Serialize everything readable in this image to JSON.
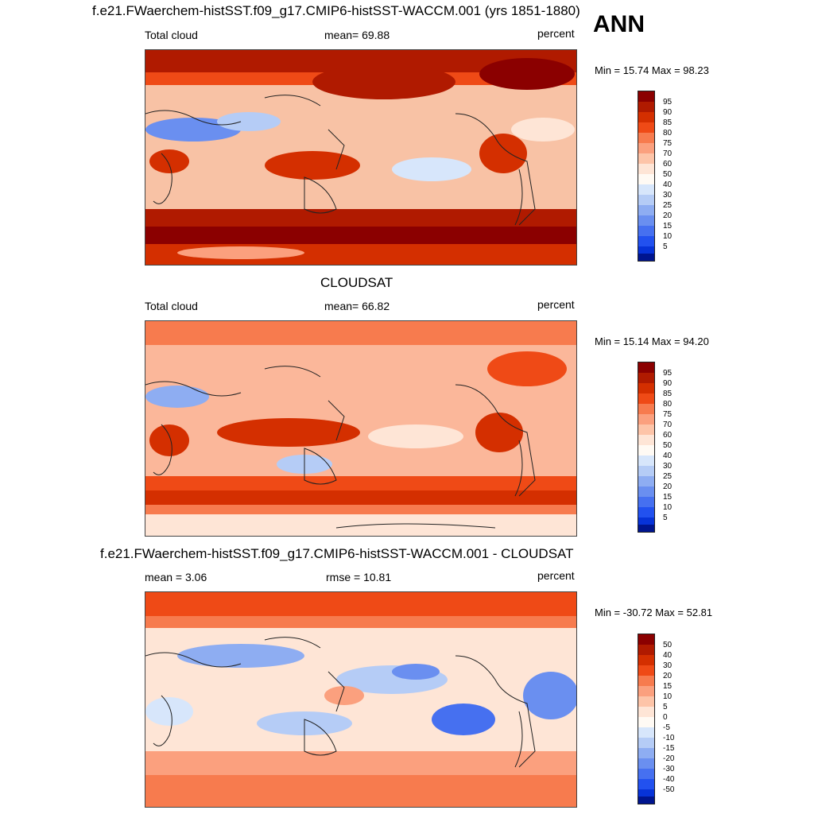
{
  "season": "ANN",
  "panels": [
    {
      "title": "f.e21.FWaerchem-histSST.f09_g17.CMIP6-histSST-WACCM.001 (yrs 1851-1880)",
      "left_label": "Total cloud",
      "center_label": "mean=  69.88",
      "units": "percent",
      "minmax": "Min =  15.74 Max =  98.23",
      "colorbar_ticks": [
        "95",
        "90",
        "85",
        "80",
        "75",
        "70",
        "60",
        "50",
        "40",
        "30",
        "25",
        "20",
        "15",
        "10",
        "5"
      ]
    },
    {
      "title": "CLOUDSAT",
      "left_label": "Total cloud",
      "center_label": "mean=  66.82",
      "units": "percent",
      "minmax": "Min =  15.14 Max =  94.20",
      "colorbar_ticks": [
        "95",
        "90",
        "85",
        "80",
        "75",
        "70",
        "60",
        "50",
        "40",
        "30",
        "25",
        "20",
        "15",
        "10",
        "5"
      ]
    },
    {
      "title": "f.e21.FWaerchem-histSST.f09_g17.CMIP6-histSST-WACCM.001 - CLOUDSAT",
      "left_label": "mean =   3.06",
      "center_label": "rmse =  10.81",
      "units": "percent",
      "minmax": "Min = -30.72 Max =  52.81",
      "colorbar_ticks": [
        "50",
        "40",
        "30",
        "20",
        "15",
        "10",
        "5",
        "0",
        "-5",
        "-10",
        "-15",
        "-20",
        "-30",
        "-40",
        "-50"
      ]
    }
  ],
  "colors": {
    "scale": [
      "#8b0000",
      "#b01a00",
      "#d42f00",
      "#ef4a16",
      "#f77b4e",
      "#fba07e",
      "#fdc4a8",
      "#fee5d6",
      "#fffaf4",
      "#d7e6fb",
      "#b5ccf6",
      "#8eadf2",
      "#6a8ff0",
      "#4670f0",
      "#2251ef",
      "#0733d8",
      "#00158f"
    ]
  }
}
